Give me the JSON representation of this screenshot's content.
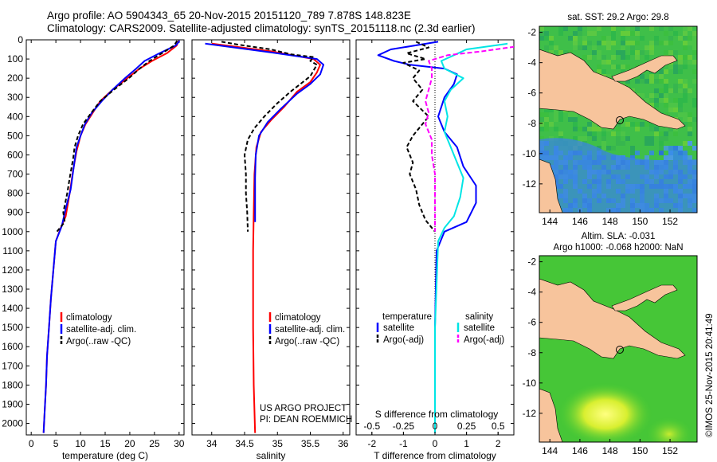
{
  "header": {
    "line1": "Argo profile: AO 5904343_65 20-Nov-2015 20151120_789 7.878S 148.823E",
    "line2": "Climatology: CARS2009. Satellite-adjusted climatology: synTS_20151118.nc (2.3d earlier)"
  },
  "credit": "©IMOS 25-Nov-2015 20:41:49",
  "colors": {
    "climatology": "#ff0000",
    "satellite": "#0000ff",
    "argo": "#000000",
    "sal_satellite": "#00e5e5",
    "sal_argo": "#ff00ff",
    "land": "#f7c49c"
  },
  "chart_data": [
    {
      "type": "line",
      "name": "temperature-profile",
      "xlabel": "temperature (deg C)",
      "xlim": [
        -1,
        31
      ],
      "ylim": [
        2060,
        0
      ],
      "yticks": [
        "0",
        "100",
        "200",
        "300",
        "400",
        "500",
        "600",
        "700",
        "800",
        "900",
        "1000",
        "1100",
        "1200",
        "1300",
        "1400",
        "1500",
        "1600",
        "1700",
        "1800",
        "1900",
        "2000"
      ],
      "xticks": [
        "0",
        "5",
        "10",
        "15",
        "20",
        "25",
        "30"
      ],
      "xtick_values": [
        0,
        5,
        10,
        15,
        20,
        25,
        30
      ],
      "legend": [
        "climatology",
        "satellite-adj. clim.",
        "Argo(..raw -QC)"
      ],
      "series": [
        {
          "name": "climatology",
          "color": "#ff0000",
          "dash": "",
          "points": [
            [
              29.9,
              5
            ],
            [
              29.5,
              30
            ],
            [
              27.5,
              70
            ],
            [
              24.5,
              110
            ],
            [
              22,
              150
            ],
            [
              19.5,
              200
            ],
            [
              16.5,
              260
            ],
            [
              14,
              320
            ],
            [
              12.5,
              380
            ],
            [
              11,
              440
            ],
            [
              10,
              500
            ],
            [
              9.2,
              580
            ],
            [
              8.5,
              680
            ],
            [
              7.8,
              800
            ],
            [
              7,
              920
            ],
            [
              6,
              980
            ],
            [
              5,
              1050
            ],
            [
              4.5,
              1200
            ],
            [
              4,
              1350
            ],
            [
              3.6,
              1500
            ],
            [
              3.2,
              1650
            ],
            [
              3,
              1800
            ],
            [
              2.7,
              1950
            ],
            [
              2.5,
              2050
            ]
          ]
        },
        {
          "name": "satellite-adj. clim.",
          "color": "#0000ff",
          "dash": "",
          "points": [
            [
              30.1,
              5
            ],
            [
              29.3,
              30
            ],
            [
              26,
              70
            ],
            [
              23,
              110
            ],
            [
              21.3,
              150
            ],
            [
              19,
              200
            ],
            [
              16.5,
              260
            ],
            [
              14.3,
              320
            ],
            [
              12.3,
              380
            ],
            [
              10.9,
              440
            ],
            [
              10,
              500
            ],
            [
              9.2,
              560
            ],
            [
              8.7,
              650
            ],
            [
              8,
              780
            ],
            [
              7,
              880
            ],
            [
              6.2,
              970
            ],
            [
              5,
              1050
            ],
            [
              4.5,
              1200
            ],
            [
              4,
              1350
            ],
            [
              3.6,
              1500
            ],
            [
              3.2,
              1650
            ],
            [
              3,
              1800
            ],
            [
              2.7,
              1950
            ],
            [
              2.5,
              2050
            ]
          ]
        },
        {
          "name": "Argo(..raw -QC)",
          "color": "#000000",
          "dash": "5,3",
          "points": [
            [
              29.6,
              5
            ],
            [
              29,
              30
            ],
            [
              26.5,
              70
            ],
            [
              24,
              110
            ],
            [
              22,
              150
            ],
            [
              19.8,
              200
            ],
            [
              16.8,
              260
            ],
            [
              14,
              320
            ],
            [
              12.2,
              380
            ],
            [
              10.5,
              440
            ],
            [
              9.5,
              500
            ],
            [
              8.8,
              560
            ],
            [
              8.5,
              620
            ],
            [
              7.8,
              720
            ],
            [
              7.3,
              800
            ],
            [
              6.5,
              900
            ],
            [
              6.8,
              950
            ],
            [
              5.2,
              1000
            ]
          ]
        }
      ]
    },
    {
      "type": "line",
      "name": "salinity-profile",
      "xlabel": "salinity",
      "xlim": [
        33.7,
        36.1
      ],
      "ylim": [
        2060,
        0
      ],
      "xticks": [
        "34",
        "34.5",
        "35",
        "35.5",
        "36"
      ],
      "xtick_values": [
        34,
        34.5,
        35,
        35.5,
        36
      ],
      "legend": [
        "climatology",
        "satellite-adj. clim.",
        "Argo(..raw -QC)"
      ],
      "annotation": [
        "US ARGO PROJECT",
        "PI: DEAN ROEMMICH"
      ],
      "series": [
        {
          "name": "climatology",
          "color": "#ff0000",
          "dash": "",
          "points": [
            [
              34.0,
              20
            ],
            [
              34.9,
              60
            ],
            [
              35.55,
              100
            ],
            [
              35.65,
              130
            ],
            [
              35.6,
              170
            ],
            [
              35.5,
              220
            ],
            [
              35.3,
              270
            ],
            [
              35.1,
              350
            ],
            [
              34.9,
              420
            ],
            [
              34.75,
              480
            ],
            [
              34.68,
              560
            ],
            [
              34.65,
              700
            ],
            [
              34.64,
              900
            ],
            [
              34.63,
              1100
            ],
            [
              34.63,
              1500
            ],
            [
              34.64,
              1800
            ],
            [
              34.66,
              2050
            ]
          ]
        },
        {
          "name": "satellite-adj. clim.",
          "color": "#0000ff",
          "dash": "",
          "points": [
            [
              33.9,
              20
            ],
            [
              34.9,
              65
            ],
            [
              35.6,
              100
            ],
            [
              35.7,
              130
            ],
            [
              35.65,
              180
            ],
            [
              35.5,
              230
            ],
            [
              35.3,
              280
            ],
            [
              35.05,
              360
            ],
            [
              34.85,
              430
            ],
            [
              34.72,
              500
            ],
            [
              34.67,
              600
            ],
            [
              34.66,
              720
            ],
            [
              34.66,
              950
            ]
          ]
        },
        {
          "name": "Argo(..raw -QC)",
          "color": "#000000",
          "dash": "5,3",
          "points": [
            [
              34.15,
              10
            ],
            [
              34.4,
              25
            ],
            [
              34.9,
              50
            ],
            [
              35.2,
              75
            ],
            [
              35.55,
              90
            ],
            [
              35.5,
              110
            ],
            [
              35.6,
              130
            ],
            [
              35.55,
              160
            ],
            [
              35.5,
              190
            ],
            [
              35.35,
              230
            ],
            [
              35.2,
              270
            ],
            [
              35.0,
              330
            ],
            [
              34.8,
              400
            ],
            [
              34.65,
              460
            ],
            [
              34.55,
              520
            ],
            [
              34.5,
              600
            ],
            [
              34.52,
              700
            ],
            [
              34.52,
              800
            ],
            [
              34.54,
              900
            ],
            [
              34.55,
              1000
            ]
          ]
        }
      ]
    },
    {
      "type": "line",
      "name": "difference-profile",
      "xlabel": "T difference from climatology",
      "xlabel_top": "S difference from climatology",
      "xlim": [
        -2.5,
        2.5
      ],
      "ylim": [
        2060,
        0
      ],
      "xticks": [
        "-2",
        "-1",
        "0",
        "1",
        "2"
      ],
      "xtick_values": [
        -2,
        -1,
        0,
        1,
        2
      ],
      "sticks": [
        "-0.5",
        "-0.25",
        "0",
        "0.25",
        "0.5"
      ],
      "stick_values": [
        -0.5,
        -0.25,
        0,
        0.25,
        0.5
      ],
      "legend_temperature": [
        "temperature",
        "satellite",
        "Argo(-adj)"
      ],
      "legend_salinity": [
        "salinity",
        "satellite",
        "Argo(-adj)"
      ],
      "series": [
        {
          "name": "T satellite",
          "color": "#0000ff",
          "dash": "",
          "points": [
            [
              0.1,
              10
            ],
            [
              -1.4,
              50
            ],
            [
              -1.8,
              80
            ],
            [
              -1.3,
              110
            ],
            [
              -0.8,
              130
            ],
            [
              0.3,
              150
            ],
            [
              0.7,
              180
            ],
            [
              0.6,
              230
            ],
            [
              0.3,
              300
            ],
            [
              0.1,
              400
            ],
            [
              0.3,
              480
            ],
            [
              0.7,
              560
            ],
            [
              0.9,
              660
            ],
            [
              1.3,
              760
            ],
            [
              1.3,
              850
            ],
            [
              1.0,
              950
            ],
            [
              0.3,
              1000
            ],
            [
              0.05,
              1100
            ],
            [
              0.0,
              1500
            ],
            [
              0.0,
              2050
            ]
          ]
        },
        {
          "name": "T Argo(-adj)",
          "color": "#000000",
          "dash": "5,3",
          "points": [
            [
              -0.6,
              10
            ],
            [
              -0.2,
              40
            ],
            [
              -0.9,
              70
            ],
            [
              -0.3,
              100
            ],
            [
              -1.0,
              120
            ],
            [
              -0.5,
              160
            ],
            [
              -0.7,
              200
            ],
            [
              -0.4,
              260
            ],
            [
              -0.7,
              320
            ],
            [
              -0.2,
              400
            ],
            [
              -0.7,
              500
            ],
            [
              -0.9,
              560
            ],
            [
              -0.7,
              640
            ],
            [
              -0.8,
              700
            ],
            [
              -0.6,
              780
            ],
            [
              -0.5,
              860
            ],
            [
              -0.3,
              940
            ],
            [
              0.0,
              1000
            ]
          ]
        },
        {
          "name": "S satellite",
          "color": "#00e5e5",
          "dash": "",
          "points": [
            [
              2.3,
              20
            ],
            [
              1.0,
              50
            ],
            [
              0.6,
              80
            ],
            [
              0.2,
              110
            ],
            [
              0.3,
              150
            ],
            [
              0.9,
              200
            ],
            [
              0.5,
              260
            ],
            [
              0.3,
              320
            ],
            [
              0.4,
              400
            ],
            [
              0.3,
              480
            ],
            [
              0.5,
              560
            ],
            [
              0.7,
              640
            ],
            [
              0.9,
              720
            ],
            [
              0.8,
              820
            ],
            [
              0.6,
              920
            ],
            [
              0.3,
              980
            ],
            [
              0.1,
              1050
            ],
            [
              0.0,
              1500
            ],
            [
              0.0,
              2050
            ]
          ]
        },
        {
          "name": "S Argo(-adj)",
          "color": "#ff00ff",
          "dash": "6,3",
          "points": [
            [
              3.2,
              20
            ],
            [
              1.5,
              60
            ],
            [
              0.4,
              80
            ],
            [
              -0.2,
              110
            ],
            [
              -0.1,
              150
            ],
            [
              -0.1,
              200
            ],
            [
              -0.2,
              260
            ],
            [
              -0.3,
              320
            ],
            [
              -0.2,
              380
            ],
            [
              -0.3,
              440
            ],
            [
              -0.1,
              520
            ],
            [
              -0.1,
              600
            ],
            [
              0.0,
              700
            ],
            [
              0.0,
              800
            ],
            [
              0.0,
              900
            ],
            [
              0.0,
              1000
            ]
          ]
        }
      ]
    },
    {
      "type": "heatmap",
      "name": "sst-map",
      "title": "sat. SST: 29.2  Argo: 29.8",
      "xticks": [
        "144",
        "146",
        "148",
        "150",
        "152"
      ],
      "yticks": [
        "-2",
        "-4",
        "-6",
        "-8",
        "-10",
        "-12"
      ]
    },
    {
      "type": "heatmap",
      "name": "sla-map",
      "title_line1": "Altim. SLA: -0.031",
      "title_line2": "Argo h1000: -0.068 h2000: NaN",
      "xticks": [
        "144",
        "146",
        "148",
        "150",
        "152"
      ],
      "yticks": [
        "-2",
        "-4",
        "-6",
        "-8",
        "-10",
        "-12"
      ]
    }
  ]
}
